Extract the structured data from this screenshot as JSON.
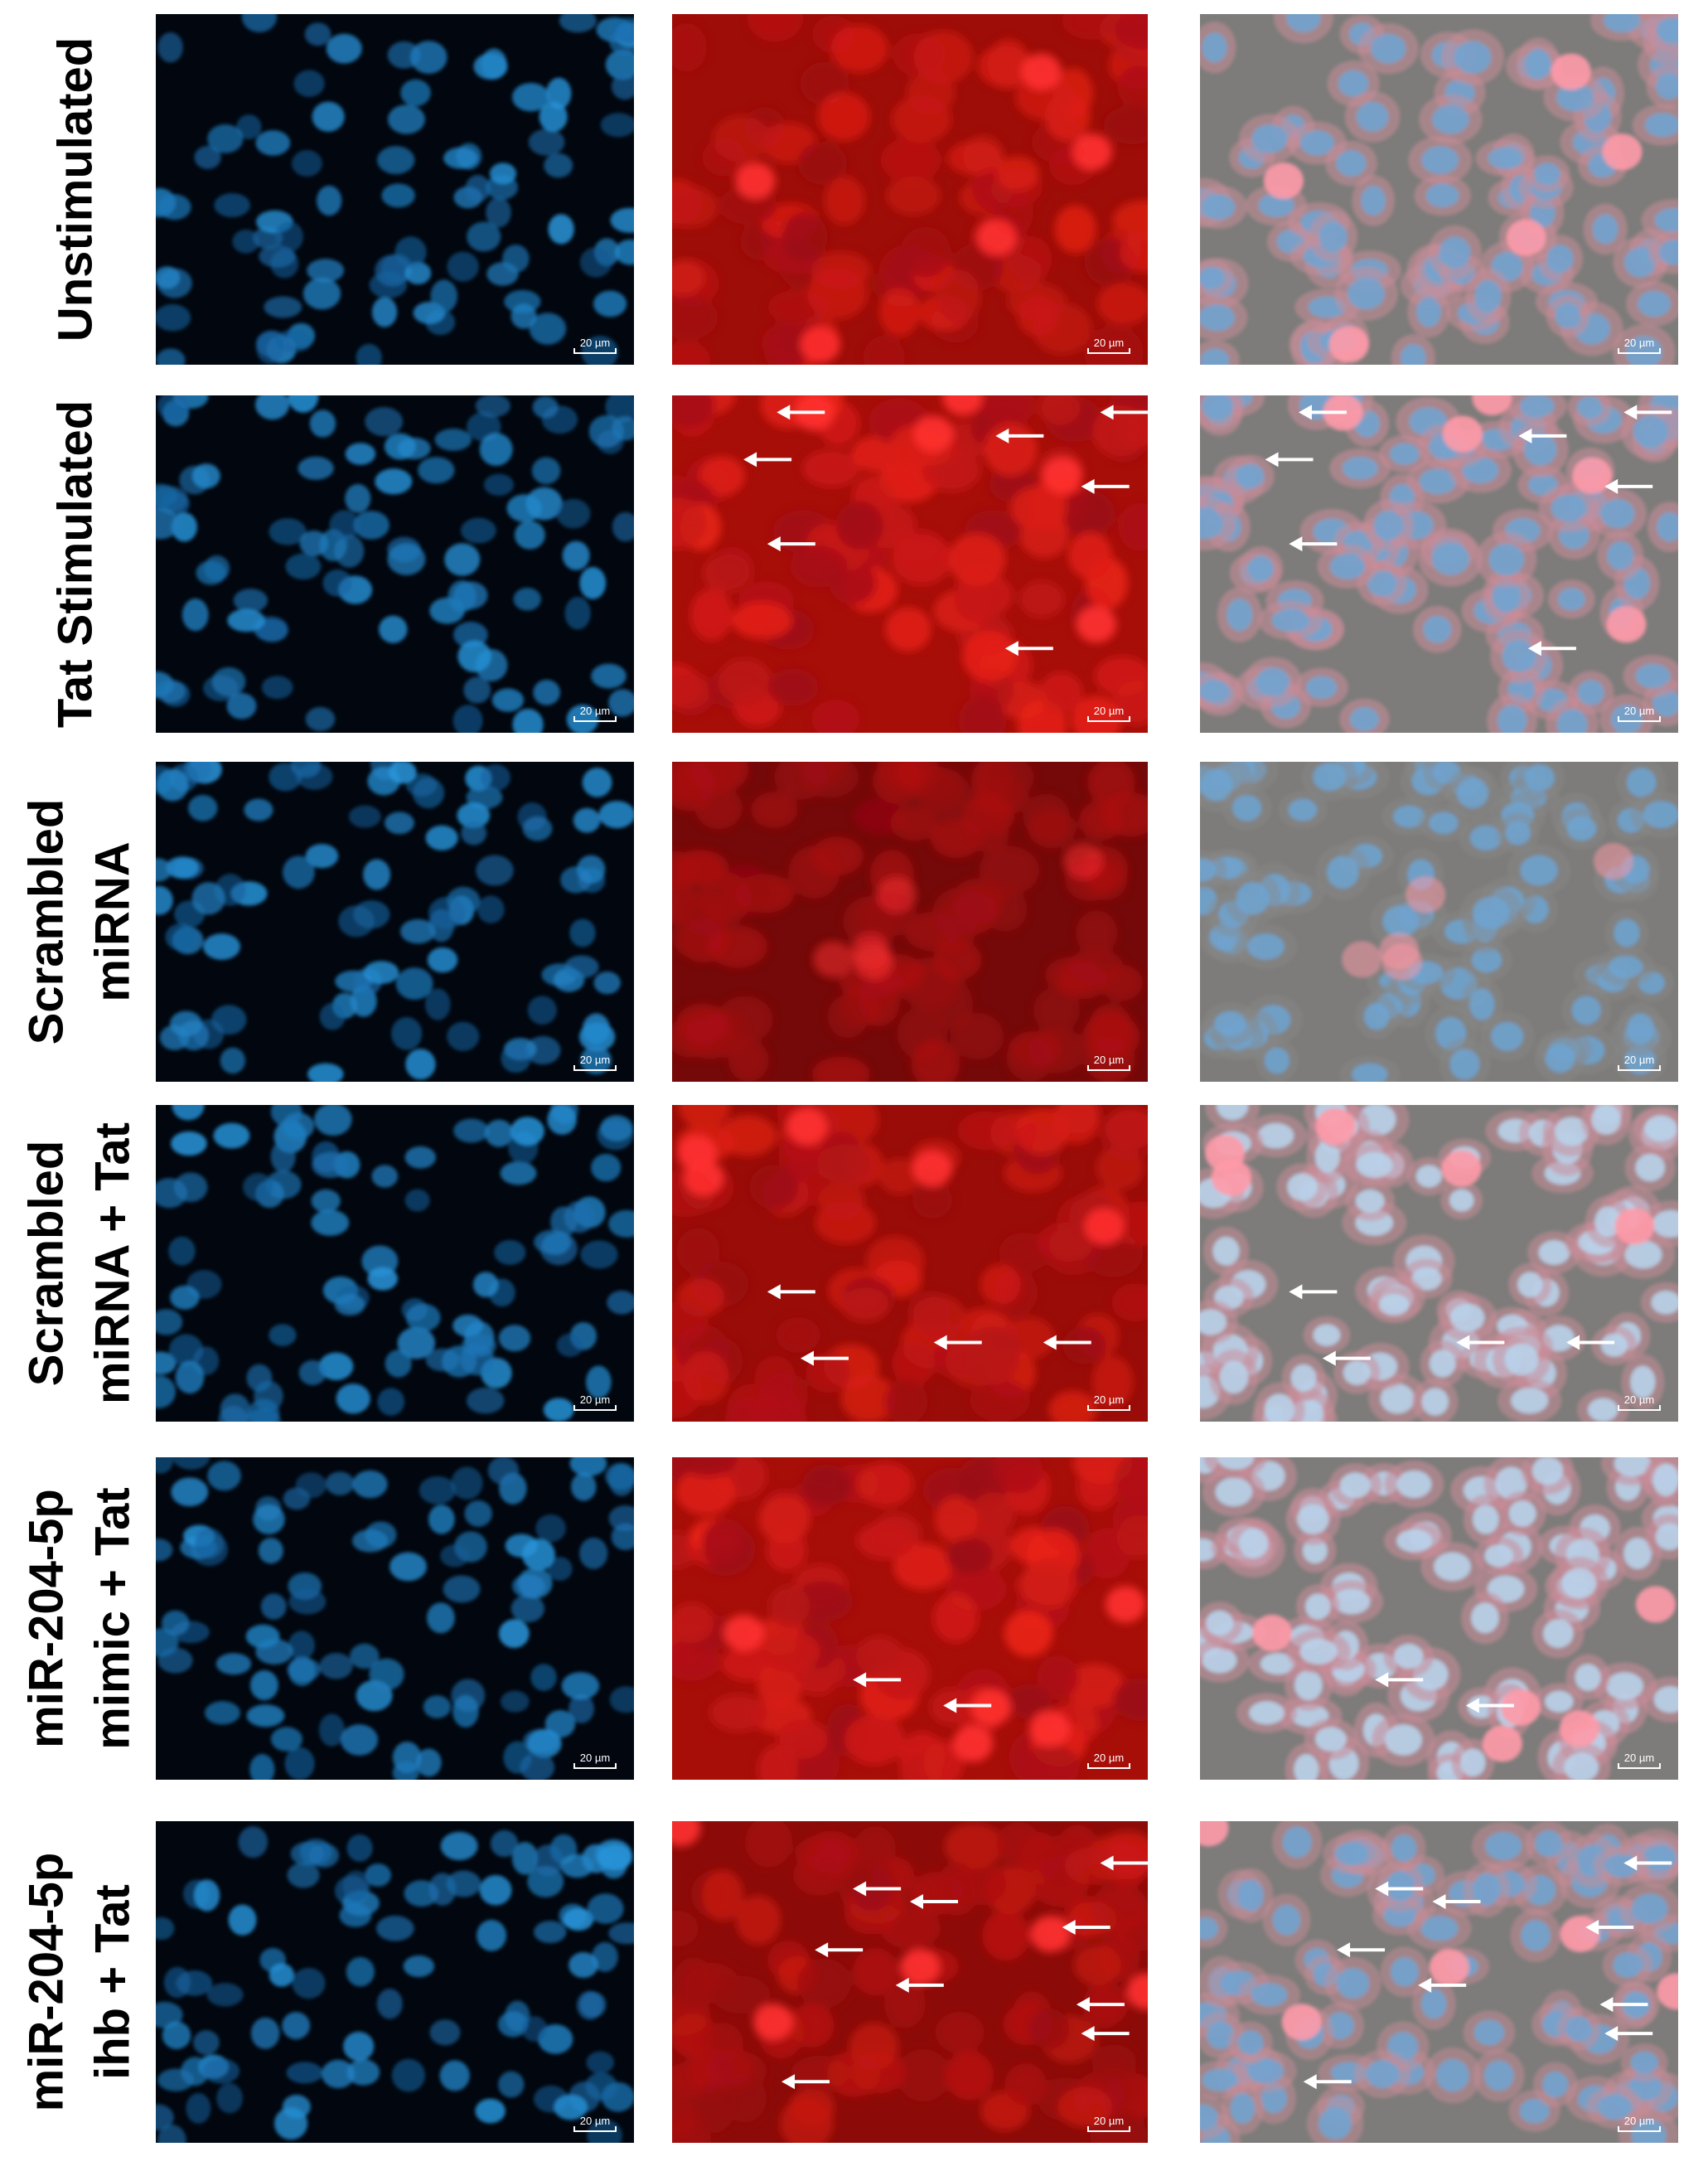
{
  "rows": [
    {
      "label": [
        "Unstimulated"
      ]
    },
    {
      "label": [
        "Tat Stimulated"
      ]
    },
    {
      "label": [
        "Scrambled",
        "miRNA"
      ]
    },
    {
      "label": [
        "Scrambled",
        "miRNA + Tat"
      ]
    },
    {
      "label": [
        "miR-204-5p",
        "mimic + Tat"
      ]
    },
    {
      "label": [
        "miR-204-5p",
        "ihb + Tat"
      ]
    }
  ],
  "scale_bar": "20 µm"
}
